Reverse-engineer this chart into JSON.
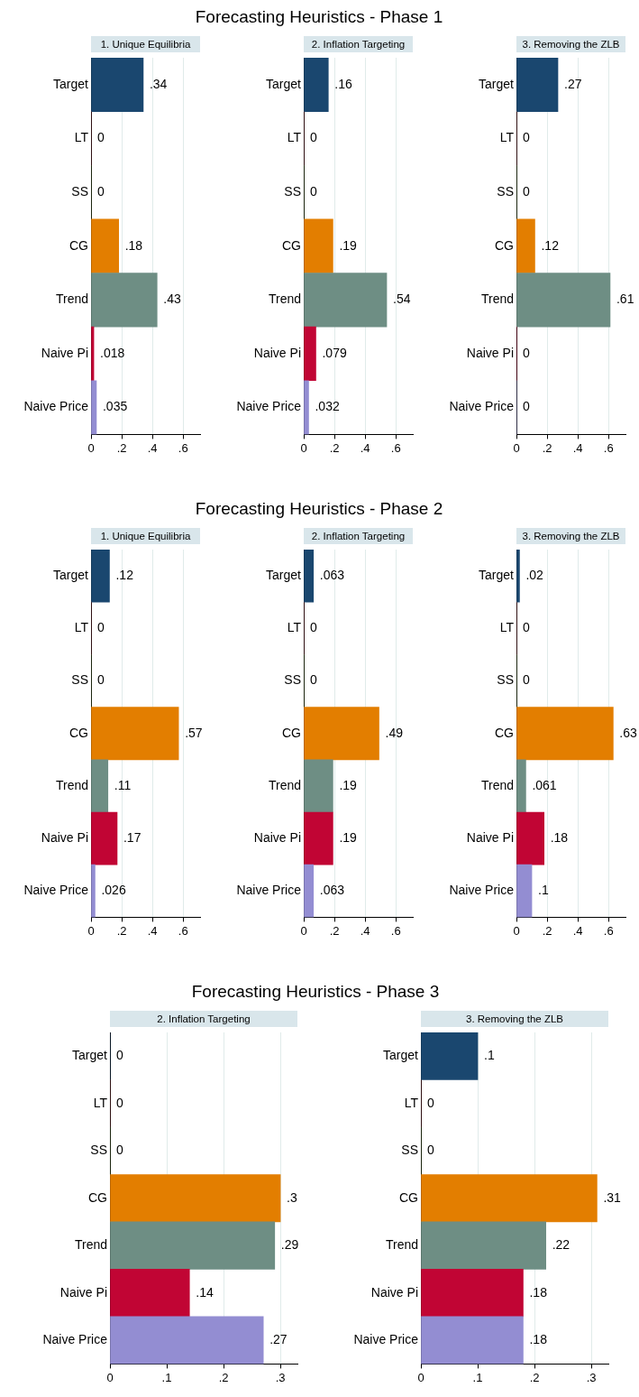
{
  "chart_data": [
    {
      "type": "bar",
      "orientation": "horizontal",
      "subtitle": "1. Unique Equilibria",
      "categories": [
        "Target",
        "LT",
        "SS",
        "CG",
        "Trend",
        "Naive Pi",
        "Naive Price"
      ],
      "values": [
        0.34,
        0,
        0,
        0.18,
        0.43,
        0.018,
        0.035
      ],
      "value_labels": [
        ".34",
        "0",
        "0",
        ".18",
        ".43",
        ".018",
        ".035"
      ],
      "colors": [
        "#1a476f",
        "#90353b",
        "#55752f",
        "#e37e00",
        "#6e8e84",
        "#c10534",
        "#938dd2"
      ],
      "xlim": [
        0,
        0.71
      ],
      "xticks": [
        {
          "value": 0,
          "label": "0"
        },
        {
          "value": 0.2,
          "label": ".2"
        },
        {
          "value": 0.4,
          "label": ".4"
        },
        {
          "value": 0.6,
          "label": ".6"
        }
      ],
      "grid": "x"
    },
    {
      "type": "bar",
      "orientation": "horizontal",
      "title": "Forecasting Heuristics - Phase 1",
      "subtitle": "2. Inflation Targeting",
      "categories": [
        "Target",
        "LT",
        "SS",
        "CG",
        "Trend",
        "Naive Pi",
        "Naive Price"
      ],
      "values": [
        0.16,
        0,
        0,
        0.19,
        0.54,
        0.079,
        0.032
      ],
      "value_labels": [
        ".16",
        "0",
        "0",
        ".19",
        ".54",
        ".079",
        ".032"
      ],
      "colors": [
        "#1a476f",
        "#90353b",
        "#55752f",
        "#e37e00",
        "#6e8e84",
        "#c10534",
        "#938dd2"
      ],
      "xlim": [
        0,
        0.71
      ],
      "xticks": [
        {
          "value": 0,
          "label": "0"
        },
        {
          "value": 0.2,
          "label": ".2"
        },
        {
          "value": 0.4,
          "label": ".4"
        },
        {
          "value": 0.6,
          "label": ".6"
        }
      ],
      "grid": "x"
    },
    {
      "type": "bar",
      "orientation": "horizontal",
      "subtitle": "3. Removing the ZLB",
      "categories": [
        "Target",
        "LT",
        "SS",
        "CG",
        "Trend",
        "Naive Pi",
        "Naive Price"
      ],
      "values": [
        0.27,
        0,
        0,
        0.12,
        0.61,
        0,
        0
      ],
      "value_labels": [
        ".27",
        "0",
        "0",
        ".12",
        ".61",
        "0",
        "0"
      ],
      "colors": [
        "#1a476f",
        "#90353b",
        "#55752f",
        "#e37e00",
        "#6e8e84",
        "#c10534",
        "#938dd2"
      ],
      "xlim": [
        0,
        0.71
      ],
      "xticks": [
        {
          "value": 0,
          "label": "0"
        },
        {
          "value": 0.2,
          "label": ".2"
        },
        {
          "value": 0.4,
          "label": ".4"
        },
        {
          "value": 0.6,
          "label": ".6"
        }
      ],
      "grid": "x"
    },
    {
      "type": "bar",
      "orientation": "horizontal",
      "subtitle": "1. Unique Equilibria",
      "categories": [
        "Target",
        "LT",
        "SS",
        "CG",
        "Trend",
        "Naive Pi",
        "Naive Price"
      ],
      "values": [
        0.12,
        0,
        0,
        0.57,
        0.11,
        0.17,
        0.026
      ],
      "value_labels": [
        ".12",
        "0",
        "0",
        ".57",
        ".11",
        ".17",
        ".026"
      ],
      "colors": [
        "#1a476f",
        "#90353b",
        "#55752f",
        "#e37e00",
        "#6e8e84",
        "#c10534",
        "#938dd2"
      ],
      "xlim": [
        0,
        0.71
      ],
      "xticks": [
        {
          "value": 0,
          "label": "0"
        },
        {
          "value": 0.2,
          "label": ".2"
        },
        {
          "value": 0.4,
          "label": ".4"
        },
        {
          "value": 0.6,
          "label": ".6"
        }
      ],
      "grid": "x"
    },
    {
      "type": "bar",
      "orientation": "horizontal",
      "title": "Forecasting Heuristics - Phase 2",
      "subtitle": "2. Inflation Targeting",
      "categories": [
        "Target",
        "LT",
        "SS",
        "CG",
        "Trend",
        "Naive Pi",
        "Naive Price"
      ],
      "values": [
        0.063,
        0,
        0,
        0.49,
        0.19,
        0.19,
        0.063
      ],
      "value_labels": [
        ".063",
        "0",
        "0",
        ".49",
        ".19",
        ".19",
        ".063"
      ],
      "colors": [
        "#1a476f",
        "#90353b",
        "#55752f",
        "#e37e00",
        "#6e8e84",
        "#c10534",
        "#938dd2"
      ],
      "xlim": [
        0,
        0.71
      ],
      "xticks": [
        {
          "value": 0,
          "label": "0"
        },
        {
          "value": 0.2,
          "label": ".2"
        },
        {
          "value": 0.4,
          "label": ".4"
        },
        {
          "value": 0.6,
          "label": ".6"
        }
      ],
      "grid": "x"
    },
    {
      "type": "bar",
      "orientation": "horizontal",
      "subtitle": "3. Removing the ZLB",
      "categories": [
        "Target",
        "LT",
        "SS",
        "CG",
        "Trend",
        "Naive Pi",
        "Naive Price"
      ],
      "values": [
        0.02,
        0,
        0,
        0.63,
        0.061,
        0.18,
        0.1
      ],
      "value_labels": [
        ".02",
        "0",
        "0",
        ".63",
        ".061",
        ".18",
        ".1"
      ],
      "colors": [
        "#1a476f",
        "#90353b",
        "#55752f",
        "#e37e00",
        "#6e8e84",
        "#c10534",
        "#938dd2"
      ],
      "xlim": [
        0,
        0.71
      ],
      "xticks": [
        {
          "value": 0,
          "label": "0"
        },
        {
          "value": 0.2,
          "label": ".2"
        },
        {
          "value": 0.4,
          "label": ".4"
        },
        {
          "value": 0.6,
          "label": ".6"
        }
      ],
      "grid": "x"
    },
    {
      "type": "bar",
      "orientation": "horizontal",
      "title": "Forecasting Heuristics - Phase 3",
      "subtitle": "2. Inflation Targeting",
      "categories": [
        "Target",
        "LT",
        "SS",
        "CG",
        "Trend",
        "Naive Pi",
        "Naive Price"
      ],
      "values": [
        0,
        0,
        0,
        0.3,
        0.29,
        0.14,
        0.27
      ],
      "value_labels": [
        "0",
        "0",
        "0",
        ".3",
        ".29",
        ".14",
        ".27"
      ],
      "colors": [
        "#1a476f",
        "#90353b",
        "#55752f",
        "#e37e00",
        "#6e8e84",
        "#c10534",
        "#938dd2"
      ],
      "xlim": [
        0,
        0.33
      ],
      "xticks": [
        {
          "value": 0,
          "label": "0"
        },
        {
          "value": 0.1,
          "label": ".1"
        },
        {
          "value": 0.2,
          "label": ".2"
        },
        {
          "value": 0.3,
          "label": ".3"
        }
      ],
      "grid": "x"
    },
    {
      "type": "bar",
      "orientation": "horizontal",
      "subtitle": "3. Removing the ZLB",
      "categories": [
        "Target",
        "LT",
        "SS",
        "CG",
        "Trend",
        "Naive Pi",
        "Naive Price"
      ],
      "values": [
        0.1,
        0,
        0,
        0.31,
        0.22,
        0.18,
        0.18
      ],
      "value_labels": [
        ".1",
        "0",
        "0",
        ".31",
        ".22",
        ".18",
        ".18"
      ],
      "colors": [
        "#1a476f",
        "#90353b",
        "#55752f",
        "#e37e00",
        "#6e8e84",
        "#c10534",
        "#938dd2"
      ],
      "xlim": [
        0,
        0.33
      ],
      "xticks": [
        {
          "value": 0,
          "label": "0"
        },
        {
          "value": 0.1,
          "label": ".1"
        },
        {
          "value": 0.2,
          "label": ".2"
        },
        {
          "value": 0.3,
          "label": ".3"
        }
      ],
      "grid": "x"
    }
  ]
}
